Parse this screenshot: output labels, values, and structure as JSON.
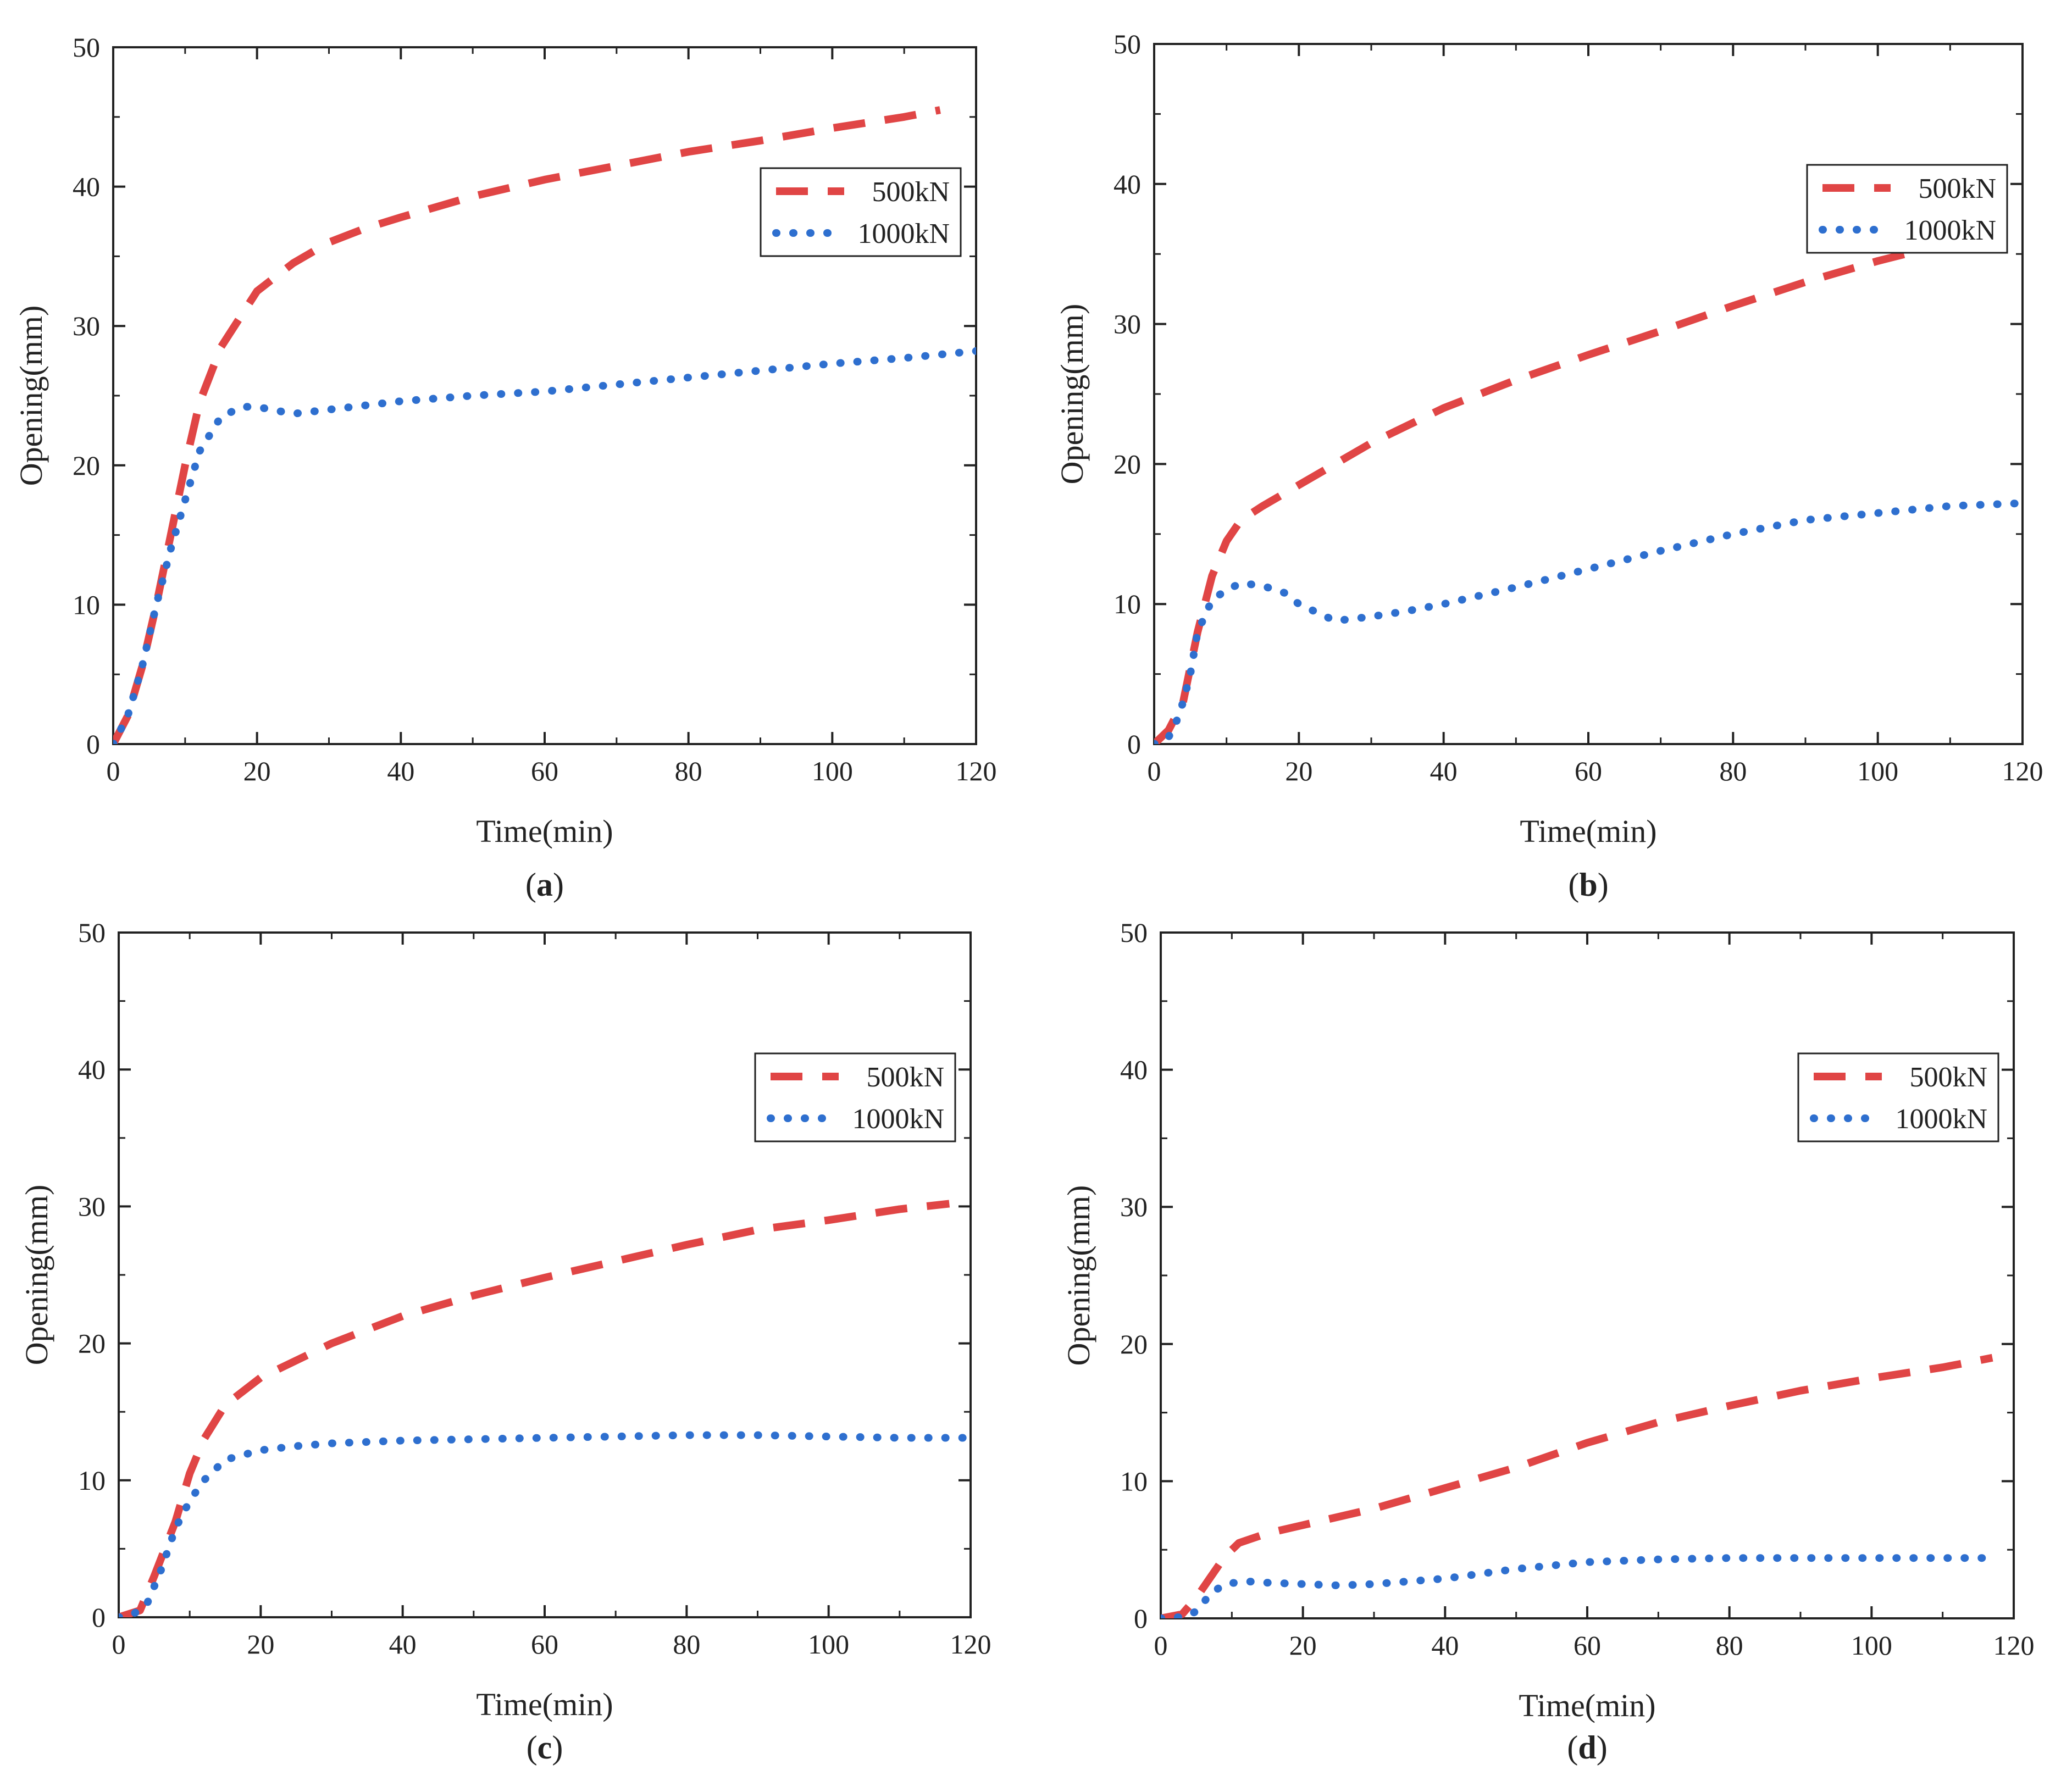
{
  "figure": {
    "panels": [
      {
        "label_open": "(",
        "label_letter": "a",
        "label_close": ")"
      },
      {
        "label_open": "(",
        "label_letter": "b",
        "label_close": ")"
      },
      {
        "label_open": "(",
        "label_letter": "c",
        "label_close": ")"
      },
      {
        "label_open": "(",
        "label_letter": "d",
        "label_close": ")"
      }
    ]
  },
  "chart_data": [
    {
      "type": "line",
      "panel": "a",
      "xlabel": "Time(min)",
      "ylabel": "Opening(mm)",
      "xlim": [
        0,
        120
      ],
      "ylim": [
        0,
        50
      ],
      "xticks": [
        0,
        20,
        40,
        60,
        80,
        100,
        120
      ],
      "yticks": [
        0,
        10,
        20,
        30,
        40,
        50
      ],
      "legend_position": "upper-right",
      "series": [
        {
          "name": "500kN",
          "style": "dashed",
          "color": "#e04545",
          "x": [
            0,
            2,
            4,
            6,
            8,
            10,
            12,
            15,
            20,
            25,
            30,
            35,
            40,
            50,
            60,
            70,
            80,
            90,
            100,
            110,
            115
          ],
          "y": [
            0,
            2,
            5.5,
            10,
            15,
            20,
            24.5,
            28.5,
            32.5,
            34.5,
            36,
            37,
            37.8,
            39.3,
            40.5,
            41.5,
            42.5,
            43.3,
            44.2,
            45,
            45.5
          ]
        },
        {
          "name": "1000kN",
          "style": "dotted",
          "color": "#2e6fcf",
          "x": [
            0,
            2,
            4,
            6,
            8,
            10,
            12,
            15,
            18,
            20,
            25,
            30,
            35,
            40,
            50,
            60,
            70,
            80,
            90,
            100,
            110,
            120
          ],
          "y": [
            0,
            2,
            5.5,
            10,
            14,
            17.5,
            21,
            23.5,
            24.2,
            24.2,
            23.7,
            24,
            24.3,
            24.6,
            25,
            25.3,
            25.8,
            26.3,
            26.8,
            27.3,
            27.7,
            28.2
          ]
        }
      ]
    },
    {
      "type": "line",
      "panel": "b",
      "xlabel": "Time(min)",
      "ylabel": "Opening(mm)",
      "xlim": [
        0,
        120
      ],
      "ylim": [
        0,
        50
      ],
      "xticks": [
        0,
        20,
        40,
        60,
        80,
        100,
        120
      ],
      "yticks": [
        0,
        10,
        20,
        30,
        40,
        50
      ],
      "legend_position": "upper-right",
      "series": [
        {
          "name": "500kN",
          "style": "dashed",
          "color": "#e04545",
          "x": [
            0,
            2,
            4,
            6,
            8,
            10,
            12,
            15,
            20,
            30,
            40,
            50,
            60,
            70,
            80,
            90,
            100,
            110,
            120
          ],
          "y": [
            0,
            1,
            3,
            8,
            12,
            14.5,
            16,
            17,
            18.5,
            21.5,
            24,
            26,
            27.8,
            29.5,
            31.3,
            33,
            34.5,
            35.8,
            37
          ]
        },
        {
          "name": "1000kN",
          "style": "dotted",
          "color": "#2e6fcf",
          "x": [
            0,
            2,
            3,
            4,
            5,
            6,
            8,
            10,
            12,
            15,
            18,
            20,
            25,
            30,
            35,
            40,
            50,
            60,
            70,
            80,
            90,
            100,
            110,
            120
          ],
          "y": [
            0,
            0.5,
            1.5,
            3,
            5,
            8,
            10.3,
            11,
            11.5,
            11.3,
            10.8,
            10,
            8.8,
            9.1,
            9.5,
            10,
            11.2,
            12.5,
            13.8,
            15,
            16,
            16.5,
            17,
            17.2
          ]
        }
      ]
    },
    {
      "type": "line",
      "panel": "c",
      "xlabel": "Time(min)",
      "ylabel": "Opening(mm)",
      "xlim": [
        0,
        120
      ],
      "ylim": [
        0,
        50
      ],
      "xticks": [
        0,
        20,
        40,
        60,
        80,
        100,
        120
      ],
      "yticks": [
        0,
        10,
        20,
        30,
        40,
        50
      ],
      "legend_position": "upper-right",
      "series": [
        {
          "name": "500kN",
          "style": "dashed",
          "color": "#e04545",
          "x": [
            0,
            3,
            5,
            8,
            10,
            12,
            15,
            20,
            30,
            40,
            50,
            60,
            70,
            80,
            90,
            100,
            110,
            117
          ],
          "y": [
            0,
            0.5,
            3,
            7,
            10.5,
            13,
            15.5,
            17.5,
            20,
            22,
            23.5,
            24.8,
            26,
            27.2,
            28.3,
            29,
            29.8,
            30.2
          ]
        },
        {
          "name": "1000kN",
          "style": "dotted",
          "color": "#2e6fcf",
          "x": [
            0,
            2,
            4,
            6,
            8,
            10,
            12,
            15,
            20,
            25,
            30,
            40,
            50,
            60,
            70,
            80,
            90,
            100,
            110,
            120
          ],
          "y": [
            0,
            0.2,
            1,
            3.5,
            6.5,
            8.5,
            10,
            11.5,
            12.2,
            12.5,
            12.7,
            12.9,
            13,
            13.1,
            13.2,
            13.3,
            13.3,
            13.2,
            13.1,
            13.1
          ]
        }
      ]
    },
    {
      "type": "line",
      "panel": "d",
      "xlabel": "Time(min)",
      "ylabel": "Opening(mm)",
      "xlim": [
        0,
        120
      ],
      "ylim": [
        0,
        50
      ],
      "xticks": [
        0,
        20,
        40,
        60,
        80,
        100,
        120
      ],
      "yticks": [
        0,
        10,
        20,
        30,
        40,
        50
      ],
      "legend_position": "upper-right",
      "series": [
        {
          "name": "500kN",
          "style": "dashed",
          "color": "#e04545",
          "x": [
            0,
            3,
            5,
            7,
            9,
            11,
            15,
            20,
            30,
            40,
            50,
            60,
            70,
            80,
            90,
            100,
            110,
            117
          ],
          "y": [
            0,
            0.3,
            1.5,
            3,
            4.5,
            5.5,
            6.2,
            6.8,
            8,
            9.5,
            11,
            12.8,
            14.3,
            15.5,
            16.6,
            17.5,
            18.3,
            19
          ]
        },
        {
          "name": "1000kN",
          "style": "dotted",
          "color": "#2e6fcf",
          "x": [
            0,
            3,
            5,
            7,
            9,
            12,
            15,
            20,
            25,
            30,
            40,
            50,
            60,
            70,
            80,
            90,
            100,
            110,
            117
          ],
          "y": [
            0,
            0.1,
            0.5,
            1.8,
            2.5,
            2.7,
            2.6,
            2.5,
            2.4,
            2.5,
            2.9,
            3.6,
            4.1,
            4.3,
            4.4,
            4.4,
            4.4,
            4.4,
            4.4
          ]
        }
      ]
    }
  ]
}
